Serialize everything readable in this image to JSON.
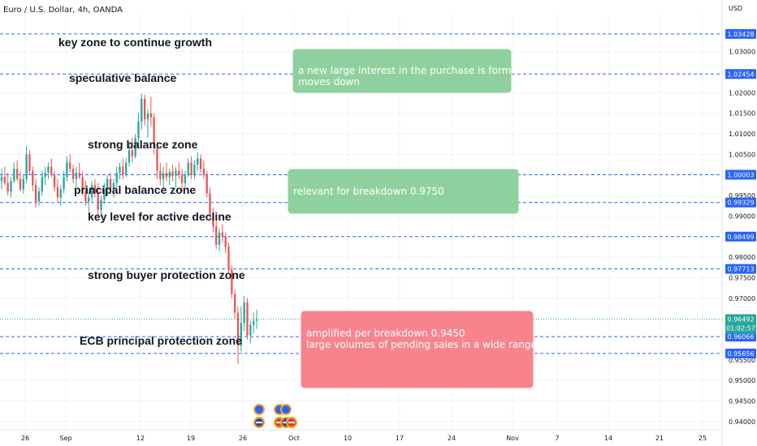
{
  "header": {
    "symbol": "Euro / U.S. Dollar, 4h, OANDA",
    "currency": "USD"
  },
  "chart_data": {
    "type": "candlestick",
    "instrument": "EURUSD",
    "timeframe": "4h",
    "ylim": [
      0.938,
      1.039
    ],
    "price_ticks": [
      1.03,
      1.02,
      1.015,
      1.01,
      1.005,
      0.995,
      0.99,
      0.98,
      0.975,
      0.97,
      0.955,
      0.95,
      0.945,
      0.94
    ],
    "x_ticks": [
      "26",
      "Sep",
      "12",
      "19",
      "26",
      "Oct",
      "10",
      "17",
      "24",
      "Nov",
      "7",
      "14",
      "21",
      "25"
    ],
    "levels": [
      {
        "price": 1.03428,
        "label": "1.03428"
      },
      {
        "price": 1.02454,
        "label": "1.02454"
      },
      {
        "price": 1.00003,
        "label": "1.00003"
      },
      {
        "price": 0.99329,
        "label": "0.99329"
      },
      {
        "price": 0.98499,
        "label": "0.98499"
      },
      {
        "price": 0.97713,
        "label": "0.97713"
      },
      {
        "price": 0.96066,
        "label": "0.96066"
      },
      {
        "price": 0.95656,
        "label": "0.95656"
      }
    ],
    "last_price": {
      "price": 0.96492,
      "label": "0.96492",
      "countdown": "01:02:57"
    },
    "zone_labels": [
      {
        "text": "key zone to continue growth",
        "price": 1.031
      },
      {
        "text": "speculative balance",
        "price": 1.021
      },
      {
        "text": "strong balance zone",
        "price": 1.011
      },
      {
        "text": "principal balance zone",
        "price": 0.9945
      },
      {
        "text": "key level for active decline",
        "price": 0.9905
      },
      {
        "text": "strong buyer protection zone",
        "price": 0.974
      },
      {
        "text": "ECB principal protection zone",
        "price": 0.958
      }
    ],
    "notes": [
      {
        "lines": [
          "a new large interest in the purchase is formed",
          "moves down"
        ],
        "color": "#8fd19e",
        "price_top": 1.022,
        "price_bottom": 1.019
      },
      {
        "lines": [
          "relevant for breakdown 0.9750"
        ],
        "color": "#8fd19e",
        "price_top": 0.997,
        "price_bottom": 0.993
      },
      {
        "lines": [
          "amplified per breakdown 0.9450",
          "large volumes of pending sales in a wide range"
        ],
        "color": "#f7848c",
        "price_top": 0.963,
        "price_bottom": 0.959
      }
    ],
    "candles": [
      [
        0.9985,
        1.0015,
        0.9965,
        0.9995
      ],
      [
        0.9995,
        1.002,
        0.9975,
        0.998
      ],
      [
        0.998,
        1.0005,
        0.995,
        0.996
      ],
      [
        0.996,
        0.9995,
        0.9945,
        0.9985
      ],
      [
        0.9985,
        1.003,
        0.998,
        1.0015
      ],
      [
        1.0015,
        1.0035,
        0.9985,
        0.999
      ],
      [
        0.999,
        1.001,
        0.996,
        0.9965
      ],
      [
        0.9965,
        1.0,
        0.9955,
        0.999
      ],
      [
        0.999,
        1.007,
        0.998,
        1.005
      ],
      [
        1.005,
        1.006,
        1.0,
        1.001
      ],
      [
        1.001,
        1.002,
        0.996,
        0.9975
      ],
      [
        0.9975,
        0.999,
        0.992,
        0.9935
      ],
      [
        0.9935,
        0.997,
        0.9925,
        0.996
      ],
      [
        0.996,
        1.001,
        0.995,
        0.9995
      ],
      [
        0.9995,
        1.002,
        0.9975,
        1.0005
      ],
      [
        1.0005,
        1.003,
        0.999,
        1.002
      ],
      [
        1.002,
        1.004,
        0.9995,
        1.0
      ],
      [
        1.0,
        1.001,
        0.996,
        0.997
      ],
      [
        0.997,
        0.999,
        0.9935,
        0.9945
      ],
      [
        0.9945,
        0.9975,
        0.9925,
        0.9965
      ],
      [
        0.9965,
        1.001,
        0.9955,
        0.9995
      ],
      [
        0.9995,
        1.0045,
        0.9985,
        1.003
      ],
      [
        1.003,
        1.005,
        1.0005,
        1.0015
      ],
      [
        1.0015,
        1.0025,
        0.998,
        0.999
      ],
      [
        0.999,
        1.002,
        0.997,
        1.0005
      ],
      [
        1.0005,
        1.003,
        0.999,
        0.9995
      ],
      [
        0.9995,
        1.001,
        0.995,
        0.996
      ],
      [
        0.996,
        0.9985,
        0.9925,
        0.9935
      ],
      [
        0.9935,
        0.996,
        0.991,
        0.9945
      ],
      [
        0.9945,
        0.9985,
        0.9935,
        0.9975
      ],
      [
        0.9975,
        0.999,
        0.9945,
        0.9955
      ],
      [
        0.9955,
        0.998,
        0.99,
        0.9915
      ],
      [
        0.9915,
        0.995,
        0.99,
        0.994
      ],
      [
        0.994,
        0.998,
        0.993,
        0.9965
      ],
      [
        0.9965,
        1.0,
        0.995,
        0.999
      ],
      [
        0.999,
        1.0005,
        0.9955,
        0.9965
      ],
      [
        0.9965,
        0.999,
        0.9945,
        0.998
      ],
      [
        0.998,
        1.002,
        0.997,
        1.0005
      ],
      [
        1.0005,
        1.003,
        0.999,
        1.002
      ],
      [
        1.002,
        1.004,
        0.999,
        1.0
      ],
      [
        1.0,
        1.004,
        0.9995,
        1.003
      ],
      [
        1.003,
        1.0075,
        1.002,
        1.006
      ],
      [
        1.006,
        1.009,
        1.003,
        1.0045
      ],
      [
        1.0045,
        1.01,
        1.004,
        1.009
      ],
      [
        1.009,
        1.015,
        1.007,
        1.013
      ],
      [
        1.013,
        1.0197,
        1.011,
        1.0185
      ],
      [
        1.0185,
        1.0195,
        1.012,
        1.0135
      ],
      [
        1.0135,
        1.016,
        1.009,
        1.015
      ],
      [
        1.015,
        1.019,
        1.012,
        1.014
      ],
      [
        1.014,
        1.015,
        1.005,
        1.0065
      ],
      [
        1.0065,
        1.008,
        0.999,
        1.001
      ],
      [
        1.001,
        1.003,
        0.9975,
        0.999
      ],
      [
        0.999,
        1.002,
        0.9965,
        1.0005
      ],
      [
        1.0005,
        1.003,
        0.9985,
        0.9995
      ],
      [
        0.9995,
        1.0015,
        0.9975,
        1.0008
      ],
      [
        1.0008,
        1.0025,
        0.9985,
        0.9998
      ],
      [
        0.9998,
        1.002,
        0.997,
        1.001
      ],
      [
        1.001,
        1.003,
        0.999,
        1.0
      ],
      [
        1.0,
        1.0015,
        0.996,
        0.998
      ],
      [
        0.998,
        1.001,
        0.997,
        1.0
      ],
      [
        1.0,
        1.004,
        0.9995,
        1.003
      ],
      [
        1.003,
        1.0045,
        0.999,
        1.0
      ],
      [
        1.0,
        1.0035,
        0.999,
        1.0025
      ],
      [
        1.0025,
        1.0055,
        1.001,
        1.004
      ],
      [
        1.004,
        1.005,
        1.0005,
        1.0015
      ],
      [
        1.0015,
        1.0035,
        0.999,
        1.0
      ],
      [
        1.0,
        1.001,
        0.9945,
        0.9955
      ],
      [
        0.9955,
        0.997,
        0.989,
        0.9905
      ],
      [
        0.9905,
        0.992,
        0.986,
        0.9875
      ],
      [
        0.9875,
        0.989,
        0.982,
        0.983
      ],
      [
        0.983,
        0.987,
        0.9815,
        0.986
      ],
      [
        0.986,
        0.988,
        0.9835,
        0.985
      ],
      [
        0.985,
        0.986,
        0.981,
        0.9825
      ],
      [
        0.9825,
        0.9835,
        0.976,
        0.977
      ],
      [
        0.977,
        0.978,
        0.97,
        0.971
      ],
      [
        0.971,
        0.972,
        0.965,
        0.9665
      ],
      [
        0.9665,
        0.968,
        0.954,
        0.9585
      ],
      [
        0.9585,
        0.968,
        0.957,
        0.964
      ],
      [
        0.964,
        0.9705,
        0.962,
        0.969
      ],
      [
        0.969,
        0.97,
        0.96,
        0.961
      ],
      [
        0.961,
        0.9645,
        0.959,
        0.9635
      ],
      [
        0.9635,
        0.9665,
        0.9615,
        0.9645
      ],
      [
        0.9645,
        0.9672,
        0.9625,
        0.9649
      ]
    ]
  },
  "colors": {
    "up": "#26a69a",
    "down": "#ef5350",
    "level_line": "#2962ff",
    "last_price": "#26a69a",
    "green_note": "#8fd19e",
    "red_note": "#f7848c",
    "grid": "#f0f3fa"
  },
  "event_icons": [
    "flag-us-icon",
    "flag-eu-icon"
  ]
}
